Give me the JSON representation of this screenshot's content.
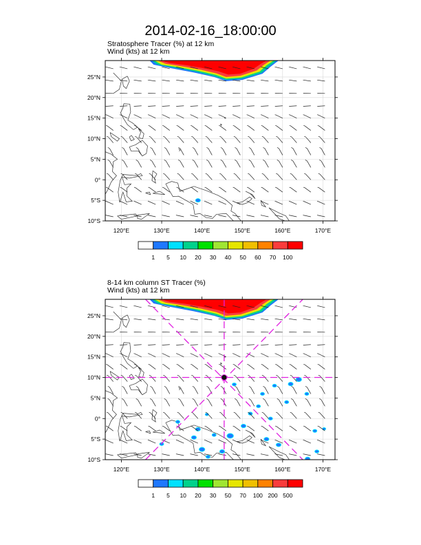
{
  "title": "2014-02-16_18:00:00",
  "panel1": {
    "line1": "Stratosphere Tracer   (%)     at   12 km",
    "line2": "Wind   (kts)      at   12 km",
    "colorbar_labels": [
      "1",
      "5",
      "10",
      "20",
      "30",
      "40",
      "50",
      "60",
      "70",
      "100"
    ],
    "colorbar_colors": [
      "#ffffff",
      "#1e78ff",
      "#00e1ff",
      "#00d28c",
      "#00e100",
      "#a0e632",
      "#e6e600",
      "#f0c000",
      "#ff8200",
      "#fa3c3c",
      "#ff0000"
    ]
  },
  "panel2": {
    "line1": "8-14 km column ST Tracer   (%)",
    "line2": "Wind   (kts)      at   12 km",
    "colorbar_labels": [
      "1",
      "5",
      "10",
      "20",
      "30",
      "50",
      "70",
      "100",
      "200",
      "500"
    ],
    "colorbar_colors": [
      "#ffffff",
      "#1e78ff",
      "#00e1ff",
      "#00d28c",
      "#00e100",
      "#a0e632",
      "#e6e600",
      "#f0c000",
      "#ff8200",
      "#fa3c3c",
      "#ff0000"
    ]
  },
  "axes": {
    "lat_labels": [
      "25°N",
      "20°N",
      "15°N",
      "10°N",
      "5°N",
      "0°",
      "5°S",
      "10°S"
    ],
    "lon_labels": [
      "120°E",
      "130°E",
      "140°E",
      "150°E",
      "160°E",
      "170°E"
    ],
    "lat_range": [
      -10,
      29
    ],
    "lon_range": [
      116,
      173
    ]
  },
  "storm_center": {
    "lat": 10,
    "lon": 145.5
  }
}
